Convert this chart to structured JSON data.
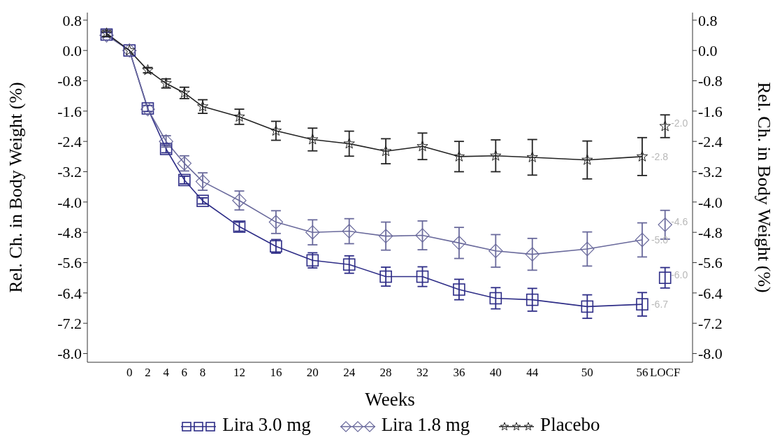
{
  "chart_data": {
    "type": "line",
    "xlabel": "Weeks",
    "ylabel": "Rel. Ch. in Body Weight (%)",
    "y2label": "Rel. Ch. in Body Weight (%)",
    "xlim": [
      -4.6,
      61.5
    ],
    "xticks": [
      0,
      2,
      4,
      6,
      8,
      12,
      16,
      20,
      24,
      28,
      32,
      36,
      40,
      44,
      50,
      56,
      {
        "value": 58.5,
        "label": "LOCF"
      }
    ],
    "ylim": [
      -8.23,
      1.0
    ],
    "yticks": [
      0.8,
      {
        "value": 0,
        "label": "0.0"
      },
      -0.8,
      -1.6,
      -2.4,
      -3.2,
      {
        "value": -4,
        "label": "-4.0"
      },
      -4.8,
      -5.6,
      -6.4,
      -7.2,
      {
        "value": -8,
        "label": "-8.0"
      }
    ],
    "y2lim": [
      -8.23,
      1.0
    ],
    "y2ticks": [
      0.8,
      {
        "value": 0,
        "label": "0.0"
      },
      -0.8,
      -1.6,
      -2.4,
      -3.2,
      {
        "value": -4,
        "label": "-4.0"
      },
      -4.8,
      -5.6,
      -6.4,
      -7.2,
      {
        "value": -8,
        "label": "-8.0"
      }
    ],
    "legend": "bottom",
    "grid": false,
    "series": [
      {
        "name": "Lira 3.0 mg",
        "marker": "square",
        "color": "#2e2d87",
        "x": [
          -2.5,
          0,
          2,
          4,
          6,
          8,
          12,
          16,
          20,
          24,
          28,
          32,
          36,
          40,
          44,
          50,
          56
        ],
        "values": [
          0.42,
          0,
          -1.53,
          -2.6,
          -3.42,
          -3.97,
          -4.65,
          -5.17,
          -5.54,
          -5.65,
          -5.97,
          -5.97,
          -6.31,
          -6.54,
          -6.58,
          -6.76,
          -6.7
        ],
        "errors": [
          0.06,
          null,
          0.08,
          0.1,
          0.1,
          0.08,
          0.12,
          0.18,
          0.2,
          0.23,
          0.25,
          0.26,
          0.27,
          0.28,
          0.3,
          0.31,
          0.31
        ],
        "value_labels": [
          null,
          null,
          null,
          null,
          null,
          null,
          null,
          null,
          null,
          null,
          null,
          null,
          null,
          null,
          null,
          null,
          "-6.7"
        ]
      },
      {
        "type": "scatter",
        "marker": "square",
        "color": "#2e2d87",
        "x": [
          58.5
        ],
        "values": [
          -6.0
        ],
        "errors": [
          0.27
        ],
        "value_labels": [
          "-6.0"
        ]
      },
      {
        "name": "Lira 1.8 mg",
        "marker": "diamond",
        "color": "#6a6a9c",
        "x": [
          -2.5,
          0,
          2,
          4,
          6,
          8,
          12,
          16,
          20,
          24,
          28,
          32,
          36,
          40,
          44,
          50,
          56
        ],
        "values": [
          0.4,
          0,
          -1.55,
          -2.4,
          -2.98,
          -3.46,
          -3.96,
          -4.53,
          -4.8,
          -4.77,
          -4.9,
          -4.88,
          -5.08,
          -5.29,
          -5.38,
          -5.24,
          -5.0
        ],
        "errors": [
          null,
          null,
          null,
          0.15,
          0.2,
          0.23,
          0.25,
          0.3,
          0.33,
          0.33,
          0.37,
          0.38,
          0.41,
          0.43,
          0.42,
          0.45,
          0.45
        ],
        "value_labels": [
          null,
          null,
          null,
          null,
          null,
          null,
          null,
          null,
          null,
          null,
          null,
          null,
          null,
          null,
          null,
          null,
          "-5.0"
        ]
      },
      {
        "type": "scatter",
        "marker": "diamond",
        "color": "#6a6a9c",
        "x": [
          58.5
        ],
        "values": [
          -4.6
        ],
        "errors": [
          0.38
        ],
        "value_labels": [
          "-4.6"
        ]
      },
      {
        "name": "Placebo",
        "marker": "star",
        "color": "#222222",
        "x": [
          -2.5,
          0,
          2,
          4,
          6,
          8,
          12,
          16,
          20,
          24,
          28,
          32,
          36,
          40,
          44,
          50,
          56
        ],
        "values": [
          0.45,
          0,
          -0.52,
          -0.87,
          -1.12,
          -1.48,
          -1.75,
          -2.12,
          -2.35,
          -2.46,
          -2.66,
          -2.53,
          -2.8,
          -2.78,
          -2.82,
          -2.89,
          -2.8
        ],
        "errors": [
          0.08,
          null,
          0.07,
          0.12,
          0.15,
          0.18,
          0.2,
          0.25,
          0.3,
          0.33,
          0.33,
          0.35,
          0.4,
          0.42,
          0.47,
          0.5,
          0.5
        ],
        "value_labels": [
          null,
          null,
          null,
          null,
          null,
          null,
          null,
          null,
          null,
          null,
          null,
          null,
          null,
          null,
          null,
          null,
          "-2.8"
        ]
      },
      {
        "type": "scatter",
        "marker": "star",
        "color": "#222222",
        "x": [
          58.5
        ],
        "values": [
          -2.0
        ],
        "errors": [
          0.3
        ],
        "value_labels": [
          "-2.0"
        ]
      }
    ]
  }
}
